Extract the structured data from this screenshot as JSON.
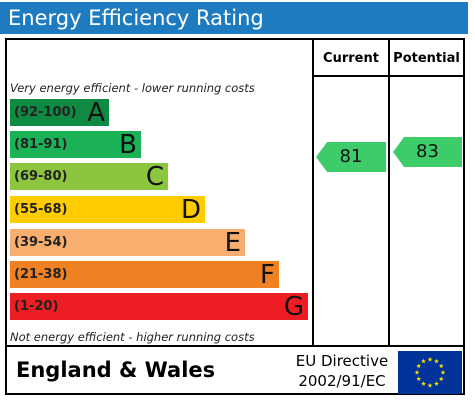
{
  "title": "Energy Efficiency Rating",
  "columns": {
    "current": "Current",
    "potential": "Potential"
  },
  "captions": {
    "top": "Very energy efficient - lower running costs",
    "bottom": "Not energy efficient - higher running costs"
  },
  "bands": [
    {
      "range": "(92-100)",
      "letter": "A",
      "color": "#0e8a43"
    },
    {
      "range": "(81-91)",
      "letter": "B",
      "color": "#1bb157"
    },
    {
      "range": "(69-80)",
      "letter": "C",
      "color": "#8cc63f"
    },
    {
      "range": "(55-68)",
      "letter": "D",
      "color": "#ffcc00"
    },
    {
      "range": "(39-54)",
      "letter": "E",
      "color": "#f7ae6e"
    },
    {
      "range": "(21-38)",
      "letter": "F",
      "color": "#f08122"
    },
    {
      "range": "(1-20)",
      "letter": "G",
      "color": "#ee1d23"
    }
  ],
  "ratings": {
    "current": {
      "value": "81",
      "color": "#3ecb6a"
    },
    "potential": {
      "value": "83",
      "color": "#3ecb6a"
    }
  },
  "footer": {
    "region": "England & Wales",
    "directive_line1": "EU Directive",
    "directive_line2": "2002/91/EC",
    "flag_color": "#003399",
    "star_color": "#ffdd00"
  }
}
